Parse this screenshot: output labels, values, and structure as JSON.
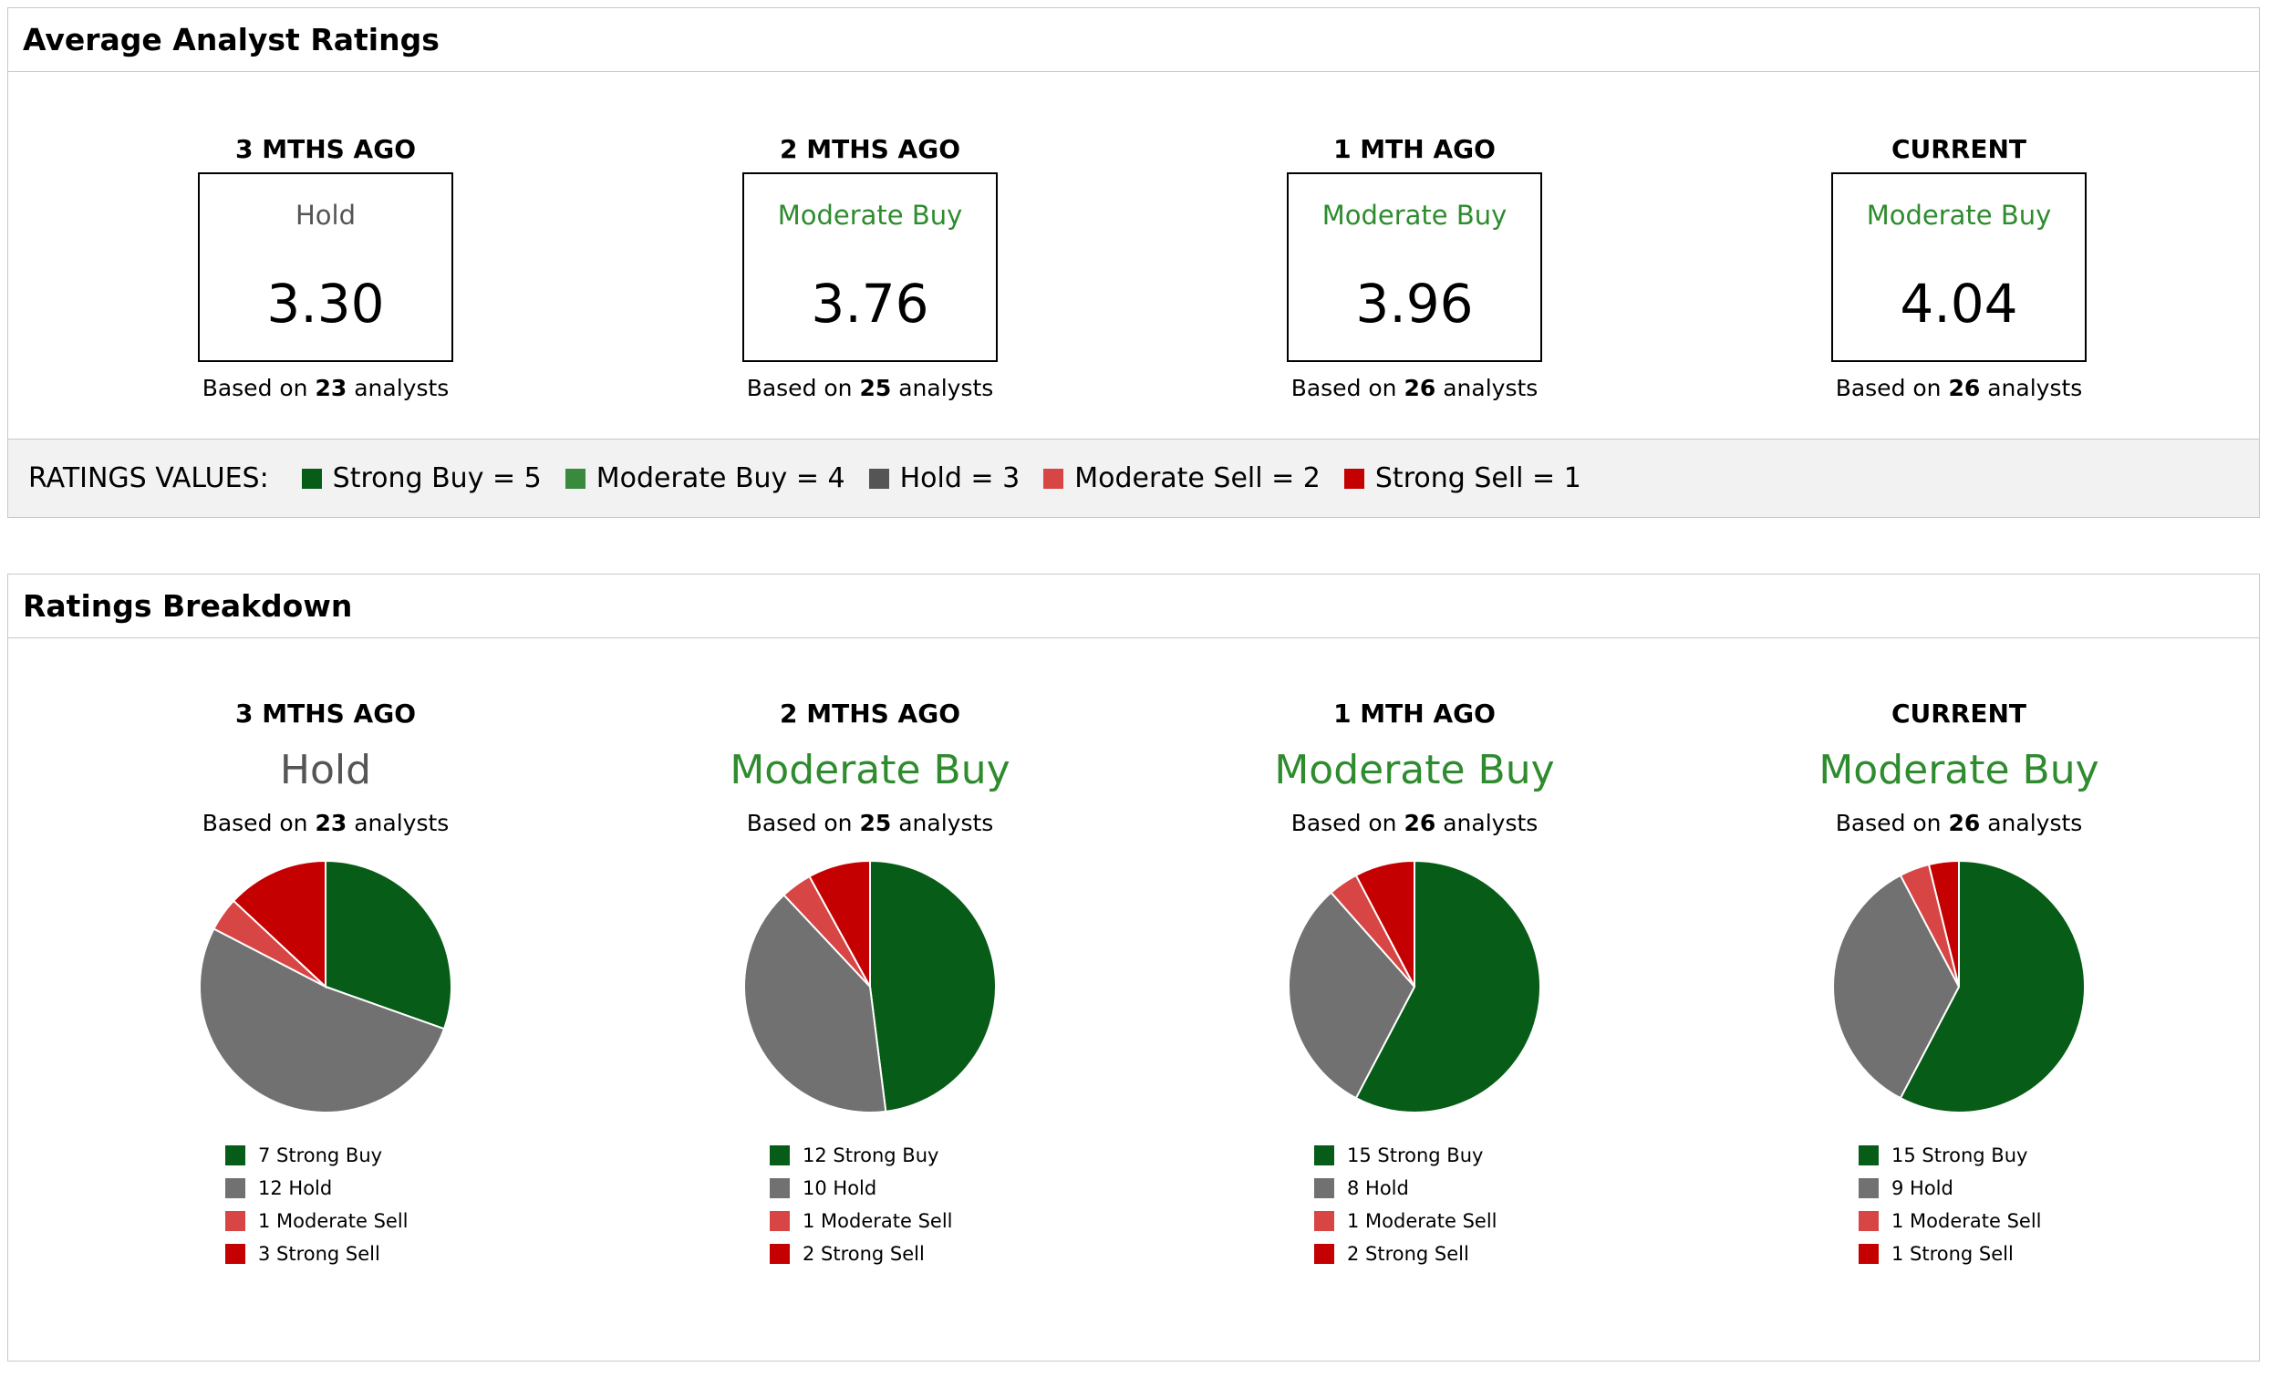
{
  "avg_panel": {
    "title": "Average Analyst Ratings",
    "columns": [
      {
        "period": "3 MTHS AGO",
        "rating": "Hold",
        "rating_color": "#555555",
        "score": "3.30",
        "based_prefix": "Based on",
        "analysts": "23",
        "based_suffix": "analysts"
      },
      {
        "period": "2 MTHS AGO",
        "rating": "Moderate Buy",
        "rating_color": "#2e8b2e",
        "score": "3.76",
        "based_prefix": "Based on",
        "analysts": "25",
        "based_suffix": "analysts"
      },
      {
        "period": "1 MTH AGO",
        "rating": "Moderate Buy",
        "rating_color": "#2e8b2e",
        "score": "3.96",
        "based_prefix": "Based on",
        "analysts": "26",
        "based_suffix": "analysts"
      },
      {
        "period": "CURRENT",
        "rating": "Moderate Buy",
        "rating_color": "#2e8b2e",
        "score": "4.04",
        "based_prefix": "Based on",
        "analysts": "26",
        "based_suffix": "analysts"
      }
    ],
    "legend": {
      "title": "RATINGS VALUES:",
      "items": [
        {
          "label": "Strong Buy = 5",
          "color": "#075c17"
        },
        {
          "label": "Moderate Buy = 4",
          "color": "#3a8a3e"
        },
        {
          "label": "Hold = 3",
          "color": "#555555"
        },
        {
          "label": "Moderate Sell = 2",
          "color": "#d84545"
        },
        {
          "label": "Strong Sell = 1",
          "color": "#c40000"
        }
      ]
    }
  },
  "breakdown_panel": {
    "title": "Ratings Breakdown",
    "columns": [
      {
        "period": "3 MTHS AGO",
        "rating": "Hold",
        "rating_color": "#555555",
        "based_prefix": "Based on",
        "analysts": "23",
        "based_suffix": "analysts"
      },
      {
        "period": "2 MTHS AGO",
        "rating": "Moderate Buy",
        "rating_color": "#2e8b2e",
        "based_prefix": "Based on",
        "analysts": "25",
        "based_suffix": "analysts"
      },
      {
        "period": "1 MTH AGO",
        "rating": "Moderate Buy",
        "rating_color": "#2e8b2e",
        "based_prefix": "Based on",
        "analysts": "26",
        "based_suffix": "analysts"
      },
      {
        "period": "CURRENT",
        "rating": "Moderate Buy",
        "rating_color": "#2e8b2e",
        "based_prefix": "Based on",
        "analysts": "26",
        "based_suffix": "analysts"
      }
    ]
  },
  "chart_data": [
    {
      "type": "pie",
      "title": "3 MTHS AGO",
      "slices": [
        {
          "name": "Strong Buy",
          "value": 7,
          "label": "7 Strong Buy",
          "color": "#075c17"
        },
        {
          "name": "Hold",
          "value": 12,
          "label": "12 Hold",
          "color": "#717171"
        },
        {
          "name": "Moderate Sell",
          "value": 1,
          "label": "1 Moderate Sell",
          "color": "#d84545"
        },
        {
          "name": "Strong Sell",
          "value": 3,
          "label": "3 Strong Sell",
          "color": "#c40000"
        }
      ]
    },
    {
      "type": "pie",
      "title": "2 MTHS AGO",
      "slices": [
        {
          "name": "Strong Buy",
          "value": 12,
          "label": "12 Strong Buy",
          "color": "#075c17"
        },
        {
          "name": "Hold",
          "value": 10,
          "label": "10 Hold",
          "color": "#717171"
        },
        {
          "name": "Moderate Sell",
          "value": 1,
          "label": "1 Moderate Sell",
          "color": "#d84545"
        },
        {
          "name": "Strong Sell",
          "value": 2,
          "label": "2 Strong Sell",
          "color": "#c40000"
        }
      ]
    },
    {
      "type": "pie",
      "title": "1 MTH AGO",
      "slices": [
        {
          "name": "Strong Buy",
          "value": 15,
          "label": "15 Strong Buy",
          "color": "#075c17"
        },
        {
          "name": "Hold",
          "value": 8,
          "label": "8 Hold",
          "color": "#717171"
        },
        {
          "name": "Moderate Sell",
          "value": 1,
          "label": "1 Moderate Sell",
          "color": "#d84545"
        },
        {
          "name": "Strong Sell",
          "value": 2,
          "label": "2 Strong Sell",
          "color": "#c40000"
        }
      ]
    },
    {
      "type": "pie",
      "title": "CURRENT",
      "slices": [
        {
          "name": "Strong Buy",
          "value": 15,
          "label": "15 Strong Buy",
          "color": "#075c17"
        },
        {
          "name": "Hold",
          "value": 9,
          "label": "9 Hold",
          "color": "#717171"
        },
        {
          "name": "Moderate Sell",
          "value": 1,
          "label": "1 Moderate Sell",
          "color": "#d84545"
        },
        {
          "name": "Strong Sell",
          "value": 1,
          "label": "1 Strong Sell",
          "color": "#c40000"
        }
      ]
    }
  ]
}
